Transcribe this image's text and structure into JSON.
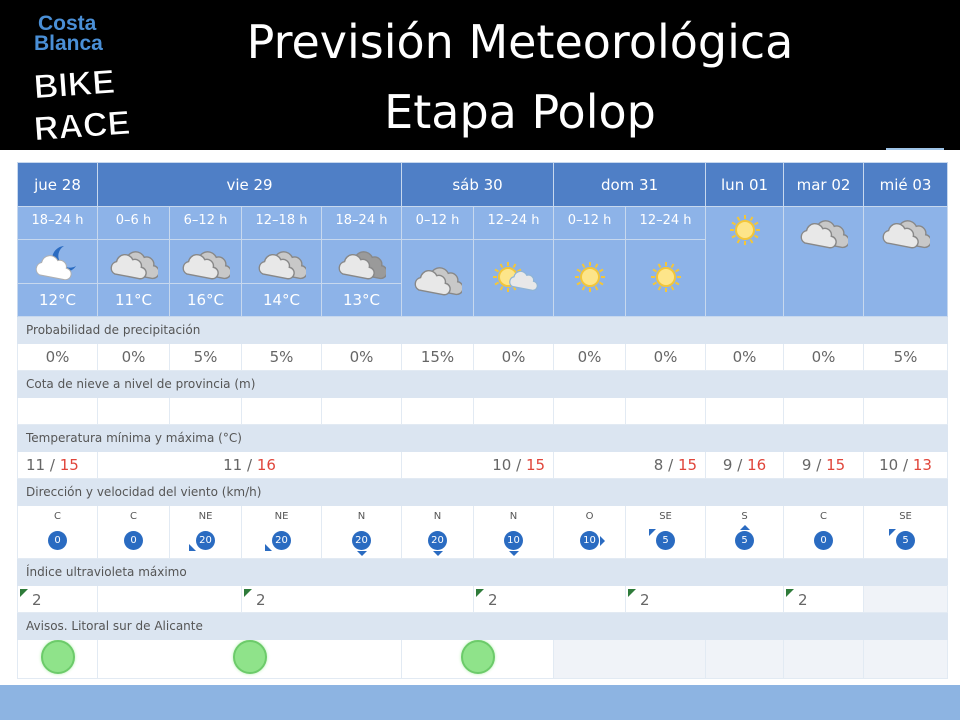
{
  "header": {
    "title_line1": "Previsión Meteorológica",
    "title_line2": "Etapa Polop",
    "logo_text_top": "Costa",
    "logo_text_mid": "Blanca",
    "logo_text_bike": "BIKE",
    "logo_text_race": "RACE",
    "background": "#000000"
  },
  "days": [
    {
      "label": "jue 28"
    },
    {
      "label": "vie 29"
    },
    {
      "label": "sáb 30"
    },
    {
      "label": "dom 31"
    },
    {
      "label": "lun 01"
    },
    {
      "label": "mar 02"
    },
    {
      "label": "mié 03"
    }
  ],
  "periods": [
    {
      "label": "18–24 h",
      "icon": "moon-cloud-icon",
      "temp": "12°C"
    },
    {
      "label": "0–6 h",
      "icon": "cloud-icon",
      "temp": "11°C"
    },
    {
      "label": "6–12 h",
      "icon": "cloud-icon",
      "temp": "16°C"
    },
    {
      "label": "12–18 h",
      "icon": "cloud-icon",
      "temp": "14°C"
    },
    {
      "label": "18–24 h",
      "icon": "dark-cloud-icon",
      "temp": "13°C"
    },
    {
      "label": "0–12 h",
      "icon": "cloud-icon",
      "temp": ""
    },
    {
      "label": "12–24 h",
      "icon": "sun-cloud-icon",
      "temp": ""
    },
    {
      "label": "0–12 h",
      "icon": "sun-icon",
      "temp": ""
    },
    {
      "label": "12–24 h",
      "icon": "sun-icon",
      "temp": ""
    },
    {
      "label": "",
      "icon": "sun-icon",
      "temp": ""
    },
    {
      "label": "",
      "icon": "cloud-icon",
      "temp": ""
    },
    {
      "label": "",
      "icon": "cloud-icon",
      "temp": ""
    }
  ],
  "sections": {
    "precip_label": "Probabilidad de precipitación",
    "snow_label": "Cota de nieve a nivel de provincia (m)",
    "temp_label": "Temperatura mínima y máxima (°C)",
    "wind_label": "Dirección y velocidad del viento (km/h)",
    "uv_label": "Índice ultravioleta máximo",
    "warnings_label": "Avisos. Litoral sur de Alicante"
  },
  "precip": [
    "0%",
    "0%",
    "5%",
    "5%",
    "0%",
    "15%",
    "0%",
    "0%",
    "0%",
    "0%",
    "0%",
    "5%"
  ],
  "temps": [
    {
      "min": "11",
      "max": "15"
    },
    {
      "min": "11",
      "max": "16"
    },
    {
      "min": "10",
      "max": "15"
    },
    {
      "min": "8",
      "max": "15"
    },
    {
      "min": "9",
      "max": "16"
    },
    {
      "min": "9",
      "max": "15"
    },
    {
      "min": "10",
      "max": "13"
    }
  ],
  "temp_separator": "/",
  "wind": [
    {
      "dir": "C",
      "speed": "0",
      "arrow": "none"
    },
    {
      "dir": "C",
      "speed": "0",
      "arrow": "none"
    },
    {
      "dir": "NE",
      "speed": "20",
      "arrow": "bottom-left"
    },
    {
      "dir": "NE",
      "speed": "20",
      "arrow": "bottom-left"
    },
    {
      "dir": "N",
      "speed": "20",
      "arrow": "bottom"
    },
    {
      "dir": "N",
      "speed": "20",
      "arrow": "bottom"
    },
    {
      "dir": "N",
      "speed": "10",
      "arrow": "bottom"
    },
    {
      "dir": "O",
      "speed": "10",
      "arrow": "right"
    },
    {
      "dir": "SE",
      "speed": "5",
      "arrow": "top-left"
    },
    {
      "dir": "S",
      "speed": "5",
      "arrow": "top"
    },
    {
      "dir": "C",
      "speed": "0",
      "arrow": "none"
    },
    {
      "dir": "SE",
      "speed": "5",
      "arrow": "top-left"
    }
  ],
  "uv": [
    "2",
    "2",
    "2",
    "2",
    "2"
  ],
  "colors": {
    "day_header": "#4f7fc6",
    "period_bg": "#8db3e8",
    "label_bg": "#dbe5f1",
    "max_temp": "#e0453a",
    "wind_circle": "#2a6bc1",
    "warning_green": "#8fe38a",
    "bottom_bar": "#8db4e2"
  }
}
